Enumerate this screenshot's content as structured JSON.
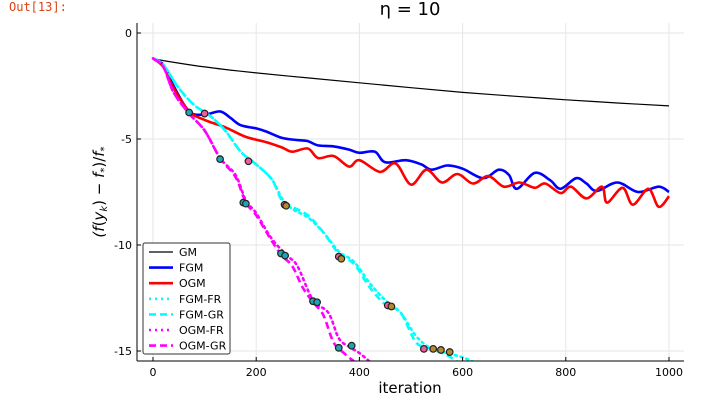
{
  "cell": {
    "out_label": "Out[13]:"
  },
  "chart_data": {
    "type": "line",
    "title": "η = 10",
    "xlabel": "iteration",
    "ylabel": "(f(y_k) − f_*)/f_*",
    "xlim": [
      -30,
      1030
    ],
    "ylim": [
      -15.5,
      0.5
    ],
    "xticks": [
      0,
      200,
      400,
      600,
      800,
      1000
    ],
    "xtick_labels": [
      "0",
      "200",
      "400",
      "600",
      "800",
      "1000"
    ],
    "yticks": [
      0,
      -5,
      -10,
      -15
    ],
    "ytick_labels": [
      "0",
      "-5",
      "-10",
      "-15"
    ],
    "grid": true,
    "legend_position": "bottom-left",
    "series": [
      {
        "name": "GM",
        "color": "#000000",
        "style": "solid",
        "width": "thin",
        "x": [
          0,
          20,
          50,
          100,
          150,
          200,
          300,
          400,
          500,
          600,
          700,
          800,
          900,
          1000
        ],
        "y": [
          -1.2,
          -1.3,
          -1.42,
          -1.6,
          -1.75,
          -1.88,
          -2.12,
          -2.35,
          -2.58,
          -2.8,
          -2.98,
          -3.15,
          -3.3,
          -3.44
        ]
      },
      {
        "name": "FGM",
        "color": "#0000ff",
        "style": "solid",
        "width": "thick",
        "x": [
          0,
          20,
          40,
          70,
          100,
          130,
          150,
          170,
          200,
          220,
          250,
          280,
          300,
          320,
          350,
          380,
          400,
          430,
          450,
          490,
          520,
          540,
          570,
          600,
          640,
          670,
          690,
          705,
          740,
          770,
          790,
          820,
          840,
          860,
          900,
          940,
          980,
          1000
        ],
        "y": [
          -1.2,
          -1.5,
          -2.5,
          -3.7,
          -3.85,
          -3.7,
          -4.0,
          -4.35,
          -4.5,
          -4.65,
          -4.95,
          -5.05,
          -5.1,
          -5.3,
          -5.35,
          -5.5,
          -5.65,
          -5.6,
          -6.1,
          -6.0,
          -6.2,
          -6.45,
          -6.25,
          -6.4,
          -6.85,
          -6.45,
          -6.7,
          -7.35,
          -6.6,
          -6.95,
          -7.35,
          -6.85,
          -7.1,
          -7.45,
          -7.05,
          -7.5,
          -7.25,
          -7.5
        ]
      },
      {
        "name": "OGM",
        "color": "#ff0000",
        "style": "solid",
        "width": "thick",
        "x": [
          0,
          20,
          40,
          70,
          100,
          140,
          180,
          220,
          250,
          270,
          300,
          320,
          350,
          380,
          400,
          440,
          470,
          500,
          530,
          560,
          590,
          620,
          650,
          680,
          710,
          740,
          760,
          790,
          810,
          840,
          870,
          880,
          910,
          930,
          960,
          980,
          1000
        ],
        "y": [
          -1.2,
          -1.6,
          -2.6,
          -3.7,
          -4.1,
          -4.45,
          -4.9,
          -5.15,
          -5.4,
          -5.6,
          -5.45,
          -5.9,
          -5.8,
          -6.3,
          -6.0,
          -6.55,
          -6.15,
          -7.15,
          -6.45,
          -7.05,
          -6.65,
          -7.1,
          -6.75,
          -7.25,
          -7.05,
          -7.3,
          -7.1,
          -7.55,
          -7.25,
          -7.8,
          -7.25,
          -8.0,
          -7.3,
          -8.1,
          -7.35,
          -8.2,
          -7.7
        ]
      },
      {
        "name": "FGM-FR",
        "color": "#00ffff",
        "style": "dotted",
        "width": "thick",
        "x": [
          0,
          20,
          50,
          80,
          110,
          140,
          170,
          200,
          230,
          250,
          270,
          300,
          330,
          360,
          390,
          420,
          450,
          480,
          510,
          540,
          570,
          600,
          620
        ],
        "y": [
          -1.2,
          -1.5,
          -2.6,
          -3.4,
          -3.9,
          -4.6,
          -5.6,
          -6.2,
          -6.9,
          -7.8,
          -8.3,
          -8.7,
          -9.4,
          -10.3,
          -10.8,
          -11.8,
          -12.6,
          -13.2,
          -14.3,
          -14.9,
          -15.1,
          -15.3,
          -15.5
        ]
      },
      {
        "name": "FGM-GR",
        "color": "#00ffff",
        "style": "dashed",
        "width": "thick",
        "x": [
          0,
          20,
          50,
          80,
          110,
          140,
          170,
          200,
          230,
          250,
          270,
          300,
          330,
          360,
          390,
          420,
          450,
          480,
          510,
          540,
          570,
          590
        ],
        "y": [
          -1.2,
          -1.5,
          -2.6,
          -3.4,
          -3.9,
          -4.6,
          -5.6,
          -6.2,
          -6.9,
          -7.9,
          -8.2,
          -8.6,
          -9.4,
          -10.4,
          -10.9,
          -12.0,
          -12.8,
          -13.2,
          -14.6,
          -14.9,
          -15.2,
          -15.5
        ]
      },
      {
        "name": "OGM-FR",
        "color": "#ff00ff",
        "style": "dotted",
        "width": "thick",
        "x": [
          0,
          20,
          40,
          70,
          100,
          130,
          160,
          180,
          200,
          230,
          260,
          280,
          310,
          340,
          360,
          380,
          400,
          420
        ],
        "y": [
          -1.2,
          -1.6,
          -2.8,
          -3.8,
          -4.6,
          -5.9,
          -6.7,
          -7.9,
          -8.5,
          -9.7,
          -10.5,
          -11.0,
          -12.6,
          -13.2,
          -14.4,
          -14.8,
          -15.1,
          -15.5
        ]
      },
      {
        "name": "OGM-GR",
        "color": "#ff00ff",
        "style": "dashed",
        "width": "thick",
        "x": [
          0,
          20,
          40,
          70,
          100,
          130,
          160,
          180,
          200,
          230,
          250,
          270,
          290,
          310,
          330,
          350,
          370,
          390
        ],
        "y": [
          -1.2,
          -1.6,
          -2.8,
          -3.8,
          -4.6,
          -5.9,
          -6.8,
          -8.0,
          -8.6,
          -9.8,
          -10.5,
          -11.0,
          -12.0,
          -12.7,
          -13.3,
          -14.6,
          -15.1,
          -15.5
        ]
      }
    ],
    "markers": [
      {
        "x": 70,
        "y": -3.75,
        "color": "#1fa4b4"
      },
      {
        "x": 100,
        "y": -3.8,
        "color": "#e8609a"
      },
      {
        "x": 130,
        "y": -5.95,
        "color": "#1fa4b4"
      },
      {
        "x": 185,
        "y": -6.05,
        "color": "#e8609a"
      },
      {
        "x": 175,
        "y": -8.0,
        "color": "#1fa4b4"
      },
      {
        "x": 180,
        "y": -8.05,
        "color": "#1fa4b4"
      },
      {
        "x": 255,
        "y": -8.1,
        "color": "#e8609a"
      },
      {
        "x": 258,
        "y": -8.15,
        "color": "#b58a2e"
      },
      {
        "x": 248,
        "y": -10.4,
        "color": "#1fa4b4"
      },
      {
        "x": 256,
        "y": -10.5,
        "color": "#1fa4b4"
      },
      {
        "x": 360,
        "y": -10.55,
        "color": "#e8609a"
      },
      {
        "x": 365,
        "y": -10.65,
        "color": "#b58a2e"
      },
      {
        "x": 310,
        "y": -12.65,
        "color": "#1fa4b4"
      },
      {
        "x": 318,
        "y": -12.7,
        "color": "#1fa4b4"
      },
      {
        "x": 455,
        "y": -12.85,
        "color": "#e8609a"
      },
      {
        "x": 462,
        "y": -12.9,
        "color": "#b58a2e"
      },
      {
        "x": 360,
        "y": -14.85,
        "color": "#1fa4b4"
      },
      {
        "x": 385,
        "y": -14.75,
        "color": "#1fa4b4"
      },
      {
        "x": 525,
        "y": -14.9,
        "color": "#e8609a"
      },
      {
        "x": 543,
        "y": -14.9,
        "color": "#b58a2e"
      },
      {
        "x": 558,
        "y": -14.95,
        "color": "#b58a2e"
      },
      {
        "x": 575,
        "y": -15.05,
        "color": "#b58a2e"
      }
    ]
  }
}
